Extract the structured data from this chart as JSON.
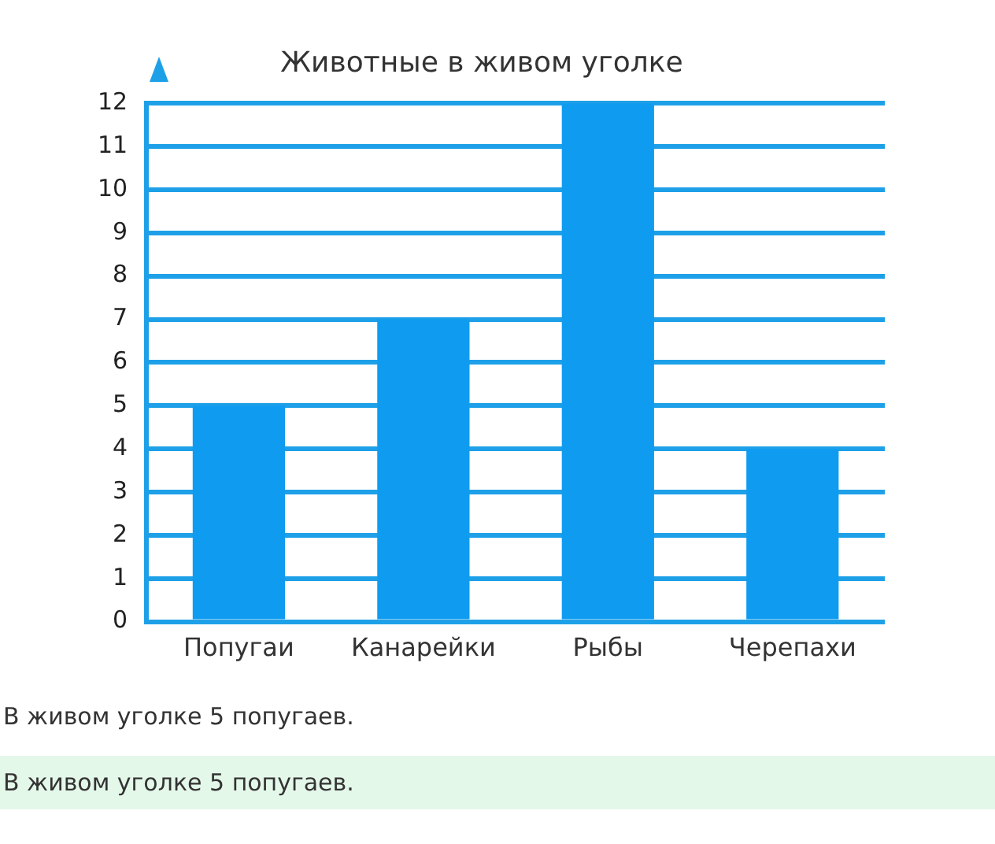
{
  "chart_data": {
    "type": "bar",
    "title": "Животные в живом уголке",
    "categories": [
      "Попугаи",
      "Канарейки",
      "Рыбы",
      "Черепахи"
    ],
    "values": [
      5,
      7,
      12,
      4
    ],
    "color": "#0f9cf0",
    "ylim": [
      0,
      12
    ],
    "yticks": [
      0,
      1,
      2,
      3,
      4,
      5,
      6,
      7,
      8,
      9,
      10,
      11,
      12
    ],
    "grid": "y",
    "legend": false,
    "annotations": [
      "В живом уголке 5 попугаев.",
      "В живом уголке 5 попугаев."
    ]
  }
}
